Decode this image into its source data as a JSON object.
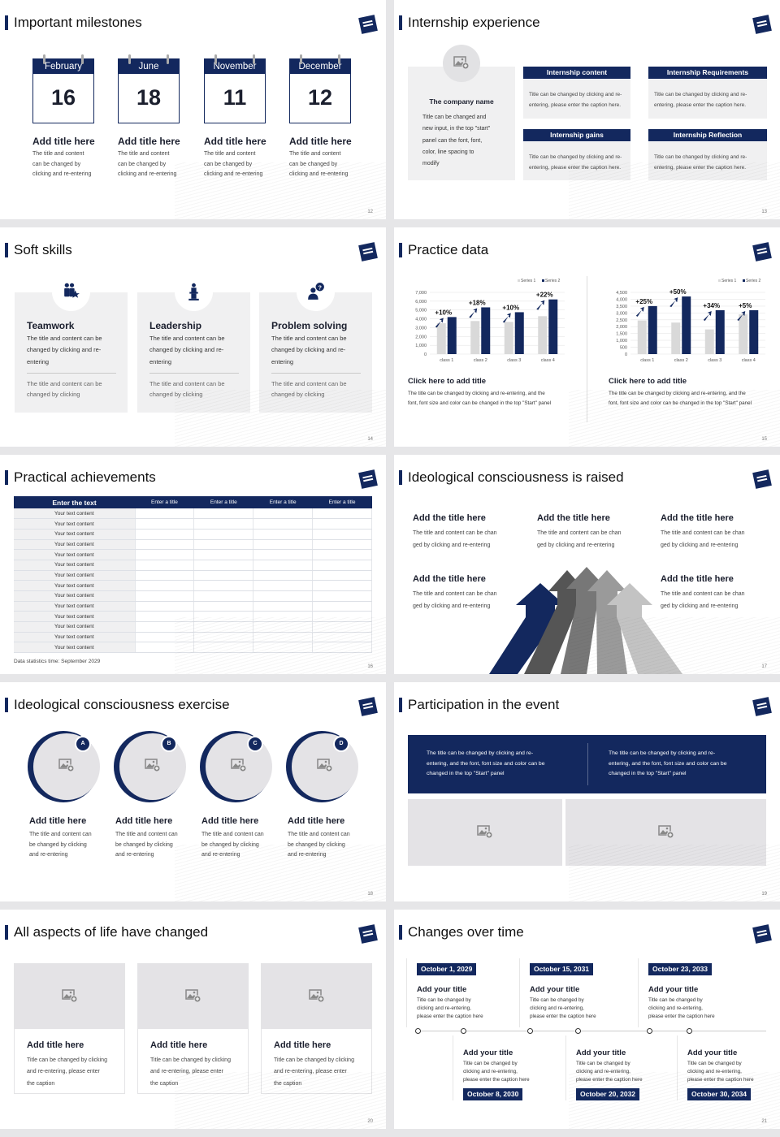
{
  "colors": {
    "navy": "#13285e",
    "light_gray": "#f0f0f1",
    "bar_gray": "#d9d9d9"
  },
  "slides": {
    "s12": {
      "title": "Important milestones",
      "page": "12",
      "items": [
        {
          "month": "February",
          "day": "16",
          "title": "Add title here",
          "desc": [
            "The title and content",
            "can be changed by",
            "clicking and re-entering"
          ]
        },
        {
          "month": "June",
          "day": "18",
          "title": "Add title here",
          "desc": [
            "The title and content",
            "can be changed by",
            "clicking and re-entering"
          ]
        },
        {
          "month": "November",
          "day": "11",
          "title": "Add title here",
          "desc": [
            "The title and content",
            "can be changed by",
            "clicking and re-entering"
          ]
        },
        {
          "month": "December",
          "day": "12",
          "title": "Add title here",
          "desc": [
            "The title and content",
            "can be changed by",
            "clicking and re-entering"
          ]
        }
      ]
    },
    "s13": {
      "title": "Internship experience",
      "page": "13",
      "company": "The company name",
      "company_desc": [
        "Title can be changed and",
        "new input, in the top \"start\"",
        "panel can the font, font,",
        "color, line spacing to",
        "modify"
      ],
      "boxes": [
        {
          "head": "Internship content",
          "body": [
            "Title can be changed by clicking and re-",
            "entering, please enter the caption here."
          ]
        },
        {
          "head": "Internship Requirements",
          "body": [
            "Title can be changed by clicking and re-",
            "entering, please enter the caption here."
          ]
        },
        {
          "head": "Internship gains",
          "body": [
            "Title can be changed by clicking and re-",
            "entering, please enter the caption here."
          ]
        },
        {
          "head": "Internship Reflection",
          "body": [
            "Title can be changed by clicking and re-",
            "entering, please enter the caption here."
          ]
        }
      ]
    },
    "s14": {
      "title": "Soft skills",
      "page": "14",
      "cards": [
        {
          "icon": "teamwork-icon",
          "title": "Teamwork",
          "desc": [
            "The title and content can be",
            "changed by clicking and re-",
            "entering"
          ],
          "sub": [
            "The title and content can be",
            "changed by clicking"
          ]
        },
        {
          "icon": "leadership-podium-icon",
          "title": "Leadership",
          "desc": [
            "The title and content can be",
            "changed by clicking and re-",
            "entering"
          ],
          "sub": [
            "The title and content can be",
            "changed by clicking"
          ]
        },
        {
          "icon": "question-person-icon",
          "title": "Problem solving",
          "desc": [
            "The title and content can be",
            "changed by clicking and re-",
            "entering"
          ],
          "sub": [
            "The title and content can be",
            "changed by clicking"
          ]
        }
      ]
    },
    "s15": {
      "title": "Practice data",
      "page": "15",
      "blocks": [
        {
          "title": "Click here to add title",
          "desc": [
            "The title can be changed by clicking and re-entering, and the",
            "font, font size and color can be changed in the top \"Start\" panel"
          ]
        },
        {
          "title": "Click here to add title",
          "desc": [
            "The title can be changed by clicking and re-entering, and the",
            "font, font size and color can be changed in the top \"Start\" panel"
          ]
        }
      ]
    },
    "s16": {
      "title": "Practical achievements",
      "page": "16",
      "headers": [
        "Enter the text",
        "Enter a title",
        "Enter a title",
        "Enter a title",
        "Enter a title"
      ],
      "rows": [
        "Your text content",
        "Your text content",
        "Your text content",
        "Your text content",
        "Your text content",
        "Your text content",
        "Your text content",
        "Your text content",
        "Your text content",
        "Your text content",
        "Your text content",
        "Your text content",
        "Your text content",
        "Your text content"
      ],
      "footnote": "Data statistics time: September 2029"
    },
    "s17": {
      "title": "Ideological consciousness is raised",
      "page": "17",
      "items": [
        {
          "title": "Add the title here",
          "desc": [
            "The title and content can be chan",
            "ged by clicking and re-entering"
          ]
        },
        {
          "title": "Add the title here",
          "desc": [
            "The title and content can be chan",
            "ged by clicking and re-entering"
          ]
        },
        {
          "title": "Add the title here",
          "desc": [
            "The title and content can be chan",
            "ged by clicking and re-entering"
          ]
        },
        {
          "title": "Add the title here",
          "desc": [
            "The title and content can be chan",
            "ged by clicking and re-entering"
          ]
        },
        {
          "title": "Add the title here",
          "desc": [
            "The title and content can be chan",
            "ged by clicking and re-entering"
          ]
        }
      ]
    },
    "s18": {
      "title": "Ideological consciousness exercise",
      "page": "18",
      "items": [
        {
          "badge": "A",
          "title": "Add title here",
          "desc": [
            "The title and content can",
            "be changed by clicking",
            "and re-entering"
          ]
        },
        {
          "badge": "B",
          "title": "Add title here",
          "desc": [
            "The title and content can",
            "be changed by clicking",
            "and re-entering"
          ]
        },
        {
          "badge": "C",
          "title": "Add title here",
          "desc": [
            "The title and content can",
            "be changed by clicking",
            "and re-entering"
          ]
        },
        {
          "badge": "D",
          "title": "Add title here",
          "desc": [
            "The title and content can",
            "be changed by clicking",
            "and re-entering"
          ]
        }
      ]
    },
    "s19": {
      "title": "Participation in the event",
      "page": "19",
      "banner": [
        [
          "The title can be changed by clicking and re-",
          "entering, and the font, font size and color can be",
          "changed in the top \"Start\" panel"
        ],
        [
          "The title can be changed by clicking and re-",
          "entering, and the font, font size and color can be",
          "changed in the top \"Start\" panel"
        ]
      ]
    },
    "s20": {
      "title": "All aspects of life have changed",
      "page": "20",
      "cards": [
        {
          "title": "Add title here",
          "desc": [
            "Title can be changed by clicking",
            "and re-entering, please enter",
            "the caption"
          ]
        },
        {
          "title": "Add title here",
          "desc": [
            "Title can be changed by clicking",
            "and re-entering, please enter",
            "the caption"
          ]
        },
        {
          "title": "Add title here",
          "desc": [
            "Title can be changed by clicking",
            "and re-entering, please enter",
            "the caption"
          ]
        }
      ]
    },
    "s21": {
      "title": "Changes over time",
      "page": "21",
      "events": [
        {
          "date": "October 1, 2029",
          "title": "Add your title",
          "desc": [
            "Title can be changed by",
            "clicking and re-entering,",
            "please enter the caption here"
          ]
        },
        {
          "date": "October 8, 2030",
          "title": "Add your title",
          "desc": [
            "Title can be changed by",
            "clicking and re-entering,",
            "please enter the caption here"
          ]
        },
        {
          "date": "October 15, 2031",
          "title": "Add your title",
          "desc": [
            "Title can be changed by",
            "clicking and re-entering,",
            "please enter the caption here"
          ]
        },
        {
          "date": "October 20, 2032",
          "title": "Add your title",
          "desc": [
            "Title can be changed by",
            "clicking and re-entering,",
            "please enter the caption here"
          ]
        },
        {
          "date": "October 23, 2033",
          "title": "Add your title",
          "desc": [
            "Title can be changed by",
            "clicking and re-entering,",
            "please enter the caption here"
          ]
        },
        {
          "date": "October 30, 2034",
          "title": "Add your title",
          "desc": [
            "Title can be changed by",
            "clicking and re-entering,",
            "please enter the caption here"
          ]
        }
      ]
    }
  },
  "chart_data": [
    {
      "type": "bar",
      "categories": [
        "class 1",
        "class 2",
        "class 3",
        "class 4"
      ],
      "series": [
        {
          "name": "Series 1",
          "values": [
            3500,
            3750,
            3650,
            4300
          ],
          "color": "#d9d9d9"
        },
        {
          "name": "Series 2",
          "values": [
            4200,
            5300,
            4750,
            6200
          ],
          "color": "#13285e"
        }
      ],
      "annotations": [
        "+10%",
        "+18%",
        "+10%",
        "+22%"
      ],
      "yticks": [
        "0",
        "1,000",
        "2,000",
        "3,000",
        "4,000",
        "5,000",
        "6,000",
        "7,000"
      ],
      "ylim": [
        0,
        7000
      ],
      "grid": true,
      "legend": "top-right"
    },
    {
      "type": "bar",
      "categories": [
        "class 1",
        "class 2",
        "class 3",
        "class 4"
      ],
      "series": [
        {
          "name": "Series 1",
          "values": [
            2450,
            2300,
            1800,
            2900
          ],
          "color": "#d9d9d9"
        },
        {
          "name": "Series 2",
          "values": [
            3500,
            4200,
            3200,
            3200
          ],
          "color": "#13285e"
        }
      ],
      "annotations": [
        "+25%",
        "+50%",
        "+34%",
        "+5%"
      ],
      "yticks": [
        "0",
        "500",
        "1,000",
        "1,500",
        "2,000",
        "2,500",
        "3,000",
        "3,500",
        "4,000",
        "4,500"
      ],
      "ylim": [
        0,
        4500
      ],
      "grid": true,
      "legend": "top-right"
    }
  ]
}
